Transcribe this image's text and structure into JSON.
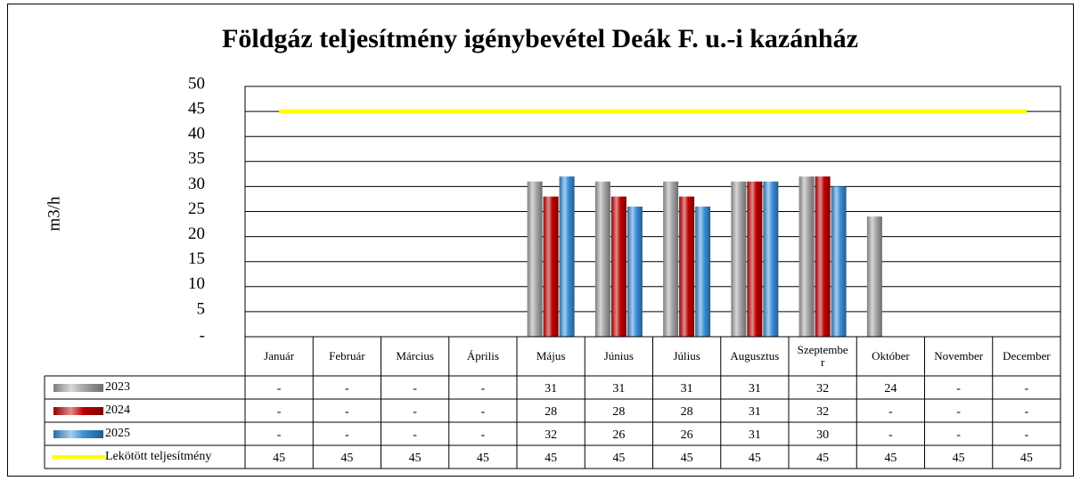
{
  "chart_data": {
    "type": "bar",
    "title": "Földgáz teljesítmény igénybevétel Deák F. u.-i kazánház",
    "y_label": "m3/h",
    "categories": [
      "Január",
      "Február",
      "Március",
      "Április",
      "Május",
      "Június",
      "Július",
      "Augusztus",
      "Szeptember",
      "Október",
      "November",
      "December"
    ],
    "series": [
      {
        "name": "2023",
        "color": "#a6a6a6",
        "values": [
          null,
          null,
          null,
          null,
          31,
          31,
          31,
          31,
          32,
          24,
          null,
          null
        ],
        "value_labels": [
          "-",
          "-",
          "-",
          "-",
          "31",
          "31",
          "31",
          "31",
          "32",
          "24",
          "-",
          "-"
        ]
      },
      {
        "name": "2024",
        "color": "#c00000",
        "values": [
          null,
          null,
          null,
          null,
          28,
          28,
          28,
          31,
          32,
          null,
          null,
          null
        ],
        "value_labels": [
          "-",
          "-",
          "-",
          "-",
          "28",
          "28",
          "28",
          "31",
          "32",
          "-",
          "-",
          "-"
        ]
      },
      {
        "name": "2025",
        "color": "#3a8fd9",
        "values": [
          null,
          null,
          null,
          null,
          32,
          26,
          26,
          31,
          30,
          null,
          null,
          null
        ],
        "value_labels": [
          "-",
          "-",
          "-",
          "-",
          "32",
          "26",
          "26",
          "31",
          "30",
          "-",
          "-",
          "-"
        ]
      },
      {
        "name": "Lekötött teljesítmény",
        "type": "line",
        "color": "#ffff00",
        "values": [
          45,
          45,
          45,
          45,
          45,
          45,
          45,
          45,
          45,
          45,
          45,
          45
        ]
      }
    ],
    "ylim": [
      0,
      50
    ],
    "yticks": [
      {
        "value": 0,
        "label": "-"
      },
      5,
      10,
      15,
      20,
      25,
      30,
      35,
      40,
      45,
      50
    ],
    "grid": true
  }
}
